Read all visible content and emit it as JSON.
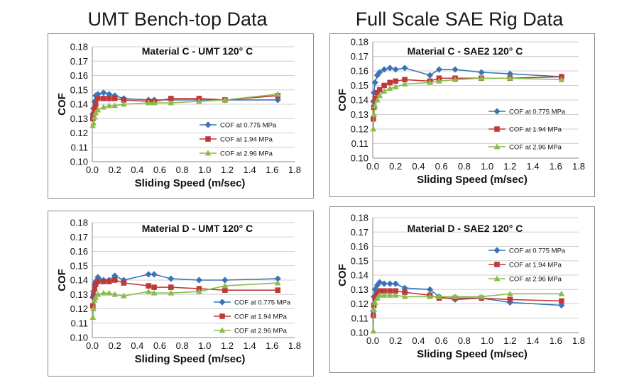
{
  "headers": {
    "left": "UMT Bench-top Data",
    "right": "Full Scale SAE Rig Data"
  },
  "colors": {
    "s0": "#3a74b8",
    "s1": "#c0393a",
    "s2": "#8dba4c",
    "grid": "#cfcfcf",
    "axis": "#8a8a8a"
  },
  "chart_data": [
    {
      "type": "line",
      "title": "Material C - UMT 120° C",
      "xlabel": "Sliding Speed (m/sec)",
      "ylabel": "COF",
      "xlim": [
        0.0,
        1.8
      ],
      "ylim": [
        0.1,
        0.18
      ],
      "xticks": [
        "0.0",
        "0.2",
        "0.4",
        "0.6",
        "0.8",
        "1.0",
        "1.2",
        "1.4",
        "1.6",
        "1.8"
      ],
      "yticks": [
        "0.10",
        "0.11",
        "0.12",
        "0.13",
        "0.14",
        "0.15",
        "0.16",
        "0.17",
        "0.18"
      ],
      "grid": true,
      "legend": "right",
      "series": [
        {
          "name": "COF at 0.775 MPa",
          "marker": "diamond",
          "x": [
            0.005,
            0.01,
            0.02,
            0.03,
            0.05,
            0.1,
            0.15,
            0.2,
            0.28,
            0.5,
            0.55,
            0.7,
            0.95,
            1.18,
            1.65
          ],
          "y": [
            0.133,
            0.137,
            0.142,
            0.146,
            0.147,
            0.148,
            0.147,
            0.146,
            0.144,
            0.143,
            0.143,
            0.143,
            0.143,
            0.143,
            0.143
          ]
        },
        {
          "name": "COF at 1.94 MPa",
          "marker": "square",
          "x": [
            0.005,
            0.01,
            0.02,
            0.03,
            0.05,
            0.1,
            0.15,
            0.2,
            0.28,
            0.5,
            0.55,
            0.7,
            0.95,
            1.18,
            1.65
          ],
          "y": [
            0.13,
            0.133,
            0.137,
            0.14,
            0.144,
            0.144,
            0.144,
            0.144,
            0.143,
            0.142,
            0.142,
            0.144,
            0.144,
            0.143,
            0.146
          ]
        },
        {
          "name": "COF at 2.96 MPa",
          "marker": "triangle",
          "x": [
            0.005,
            0.01,
            0.02,
            0.03,
            0.05,
            0.1,
            0.15,
            0.2,
            0.28,
            0.5,
            0.55,
            0.7,
            0.95,
            1.18,
            1.65
          ],
          "y": [
            0.125,
            0.127,
            0.131,
            0.134,
            0.136,
            0.138,
            0.139,
            0.139,
            0.14,
            0.141,
            0.141,
            0.141,
            0.142,
            0.143,
            0.147
          ]
        }
      ]
    },
    {
      "type": "line",
      "title": "Material C - SAE2 120° C",
      "xlabel": "Sliding Speed (m/sec)",
      "ylabel": "COF",
      "xlim": [
        0.0,
        1.8
      ],
      "ylim": [
        0.1,
        0.18
      ],
      "xticks": [
        "0.0",
        "0.2",
        "0.4",
        "0.6",
        "0.8",
        "1.0",
        "1.2",
        "1.4",
        "1.6",
        "1.8"
      ],
      "yticks": [
        "0.10",
        "0.11",
        "0.12",
        "0.13",
        "0.14",
        "0.15",
        "0.16",
        "0.17",
        "0.18"
      ],
      "grid": true,
      "legend": "right",
      "series": [
        {
          "name": "COF at 0.775 MPa",
          "marker": "diamond",
          "x": [
            0.005,
            0.01,
            0.02,
            0.04,
            0.06,
            0.1,
            0.15,
            0.2,
            0.28,
            0.5,
            0.58,
            0.72,
            0.95,
            1.2,
            1.65
          ],
          "y": [
            0.139,
            0.145,
            0.152,
            0.157,
            0.159,
            0.161,
            0.162,
            0.161,
            0.162,
            0.157,
            0.161,
            0.161,
            0.159,
            0.158,
            0.156
          ]
        },
        {
          "name": "COF at 1.94 MPa",
          "marker": "square",
          "x": [
            0.005,
            0.01,
            0.02,
            0.04,
            0.06,
            0.1,
            0.15,
            0.2,
            0.28,
            0.5,
            0.58,
            0.72,
            0.95,
            1.2,
            1.65
          ],
          "y": [
            0.127,
            0.135,
            0.141,
            0.145,
            0.147,
            0.15,
            0.152,
            0.153,
            0.154,
            0.153,
            0.155,
            0.155,
            0.155,
            0.155,
            0.156
          ]
        },
        {
          "name": "COF at 2.96 MPa",
          "marker": "triangle",
          "x": [
            0.005,
            0.01,
            0.02,
            0.04,
            0.06,
            0.1,
            0.15,
            0.2,
            0.28,
            0.5,
            0.58,
            0.72,
            0.95,
            1.2,
            1.65
          ],
          "y": [
            0.12,
            0.13,
            0.136,
            0.14,
            0.143,
            0.146,
            0.148,
            0.149,
            0.151,
            0.152,
            0.153,
            0.154,
            0.155,
            0.155,
            0.154
          ]
        }
      ]
    },
    {
      "type": "line",
      "title": "Material D - UMT 120° C",
      "xlabel": "Sliding Speed (m/sec)",
      "ylabel": "COF",
      "xlim": [
        0.0,
        1.8
      ],
      "ylim": [
        0.1,
        0.18
      ],
      "xticks": [
        "0.0",
        "0.2",
        "0.4",
        "0.6",
        "0.8",
        "1.0",
        "1.2",
        "1.4",
        "1.6",
        "1.8"
      ],
      "yticks": [
        "0.10",
        "0.11",
        "0.12",
        "0.13",
        "0.14",
        "0.15",
        "0.16",
        "0.17",
        "0.18"
      ],
      "grid": true,
      "legend": "right",
      "series": [
        {
          "name": "COF at 0.775 MPa",
          "marker": "diamond",
          "x": [
            0.005,
            0.01,
            0.02,
            0.03,
            0.05,
            0.1,
            0.15,
            0.2,
            0.28,
            0.5,
            0.55,
            0.7,
            0.95,
            1.18,
            1.65
          ],
          "y": [
            0.128,
            0.132,
            0.137,
            0.139,
            0.142,
            0.14,
            0.14,
            0.143,
            0.14,
            0.144,
            0.144,
            0.141,
            0.14,
            0.14,
            0.141
          ]
        },
        {
          "name": "COF at 1.94 MPa",
          "marker": "square",
          "x": [
            0.005,
            0.01,
            0.02,
            0.03,
            0.05,
            0.1,
            0.15,
            0.2,
            0.28,
            0.5,
            0.55,
            0.7,
            0.95,
            1.18,
            1.65
          ],
          "y": [
            0.122,
            0.129,
            0.134,
            0.137,
            0.139,
            0.139,
            0.139,
            0.14,
            0.138,
            0.136,
            0.135,
            0.135,
            0.134,
            0.133,
            0.133
          ]
        },
        {
          "name": "COF at 2.96 MPa",
          "marker": "triangle",
          "x": [
            0.005,
            0.01,
            0.02,
            0.03,
            0.05,
            0.1,
            0.15,
            0.2,
            0.28,
            0.5,
            0.55,
            0.7,
            0.95,
            1.18,
            1.65
          ],
          "y": [
            0.114,
            0.12,
            0.126,
            0.128,
            0.13,
            0.131,
            0.131,
            0.13,
            0.129,
            0.132,
            0.131,
            0.131,
            0.132,
            0.136,
            0.138
          ]
        }
      ]
    },
    {
      "type": "line",
      "title": "Material D - SAE2 120° C",
      "xlabel": "Sliding Speed (m/sec)",
      "ylabel": "COF",
      "xlim": [
        0.0,
        1.8
      ],
      "ylim": [
        0.1,
        0.18
      ],
      "xticks": [
        "0.0",
        "0.2",
        "0.4",
        "0.6",
        "0.8",
        "1.0",
        "1.2",
        "1.4",
        "1.6",
        "1.8"
      ],
      "yticks": [
        "0.10",
        "0.11",
        "0.12",
        "0.13",
        "0.14",
        "0.15",
        "0.16",
        "0.17",
        "0.18"
      ],
      "grid": true,
      "legend": "right",
      "series": [
        {
          "name": "COF at 0.775 MPa",
          "marker": "diamond",
          "x": [
            0.005,
            0.01,
            0.02,
            0.04,
            0.06,
            0.1,
            0.15,
            0.2,
            0.28,
            0.5,
            0.58,
            0.72,
            0.95,
            1.2,
            1.65
          ],
          "y": [
            0.115,
            0.125,
            0.13,
            0.133,
            0.135,
            0.134,
            0.134,
            0.134,
            0.131,
            0.13,
            0.125,
            0.123,
            0.124,
            0.121,
            0.119
          ]
        },
        {
          "name": "COF at 1.94 MPa",
          "marker": "square",
          "x": [
            0.005,
            0.01,
            0.02,
            0.04,
            0.06,
            0.1,
            0.15,
            0.2,
            0.28,
            0.5,
            0.58,
            0.72,
            0.95,
            1.2,
            1.65
          ],
          "y": [
            0.112,
            0.119,
            0.124,
            0.127,
            0.129,
            0.129,
            0.129,
            0.129,
            0.128,
            0.126,
            0.124,
            0.124,
            0.124,
            0.123,
            0.122
          ]
        },
        {
          "name": "COF at 2.96 MPa",
          "marker": "triangle",
          "x": [
            0.005,
            0.01,
            0.02,
            0.04,
            0.06,
            0.1,
            0.15,
            0.2,
            0.28,
            0.5,
            0.58,
            0.72,
            0.95,
            1.2,
            1.65
          ],
          "y": [
            0.101,
            0.116,
            0.121,
            0.124,
            0.126,
            0.126,
            0.126,
            0.126,
            0.125,
            0.125,
            0.125,
            0.125,
            0.125,
            0.127,
            0.127
          ]
        }
      ]
    }
  ]
}
